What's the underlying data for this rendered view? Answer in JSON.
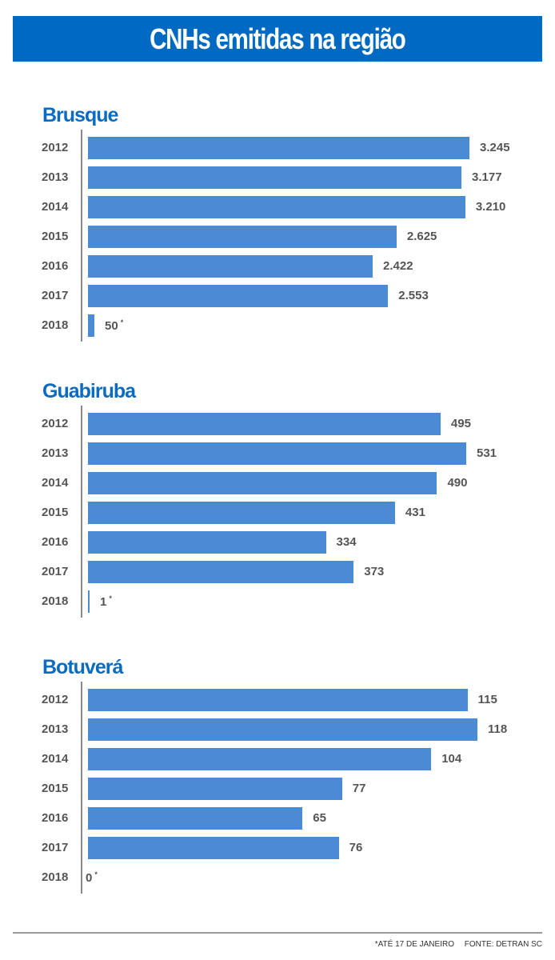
{
  "title": "CNHs emitidas na região",
  "footer": {
    "note": "*ATÉ 17 DE JANEIRO",
    "source": "FONTE: DETRAN SC"
  },
  "colors": {
    "title_band": "#0069c2",
    "bar": "#4a8bd4",
    "heading": "#0b6bc0"
  },
  "chart_data": [
    {
      "type": "bar",
      "orientation": "horizontal",
      "title": "Brusque",
      "categories": [
        "2012",
        "2013",
        "2014",
        "2015",
        "2016",
        "2017",
        "2018"
      ],
      "values": [
        3245,
        3177,
        3210,
        2625,
        2422,
        2553,
        50
      ],
      "labels": [
        "3.245",
        "3.177",
        "3.210",
        "2.625",
        "2.422",
        "2.553",
        "50"
      ],
      "footnote_marks": [
        false,
        false,
        false,
        false,
        false,
        false,
        true
      ]
    },
    {
      "type": "bar",
      "orientation": "horizontal",
      "title": "Guabiruba",
      "categories": [
        "2012",
        "2013",
        "2014",
        "2015",
        "2016",
        "2017",
        "2018"
      ],
      "values": [
        495,
        531,
        490,
        431,
        334,
        373,
        1
      ],
      "labels": [
        "495",
        "531",
        "490",
        "431",
        "334",
        "373",
        "1"
      ],
      "footnote_marks": [
        false,
        false,
        false,
        false,
        false,
        false,
        true
      ]
    },
    {
      "type": "bar",
      "orientation": "horizontal",
      "title": "Botuverá",
      "categories": [
        "2012",
        "2013",
        "2014",
        "2015",
        "2016",
        "2017",
        "2018"
      ],
      "values": [
        115,
        118,
        104,
        77,
        65,
        76,
        0
      ],
      "labels": [
        "115",
        "118",
        "104",
        "77",
        "65",
        "76",
        "0"
      ],
      "footnote_marks": [
        false,
        false,
        false,
        false,
        false,
        false,
        true
      ]
    }
  ]
}
